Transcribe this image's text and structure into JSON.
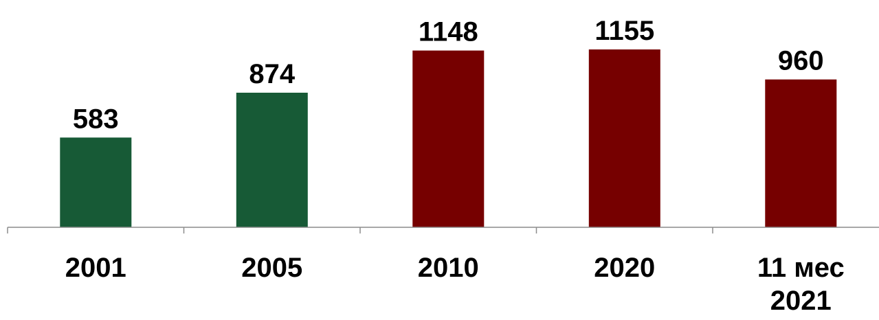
{
  "chart_data": {
    "type": "bar",
    "categories": [
      "2001",
      "2005",
      "2010",
      "2020",
      "11 мес 2021"
    ],
    "category_lines": [
      [
        "2001"
      ],
      [
        "2005"
      ],
      [
        "2010"
      ],
      [
        "2020"
      ],
      [
        "11 мес",
        "2021"
      ]
    ],
    "values": [
      583,
      874,
      1148,
      1155,
      960
    ],
    "data_labels": [
      "583",
      "874",
      "1148",
      "1155",
      "960"
    ],
    "bar_colors": [
      "#175a36",
      "#175a36",
      "#760000",
      "#760000",
      "#760000"
    ],
    "title": "",
    "xlabel": "",
    "ylabel": "",
    "ylim": [
      0,
      1155
    ],
    "grid": false,
    "legend": "none"
  }
}
